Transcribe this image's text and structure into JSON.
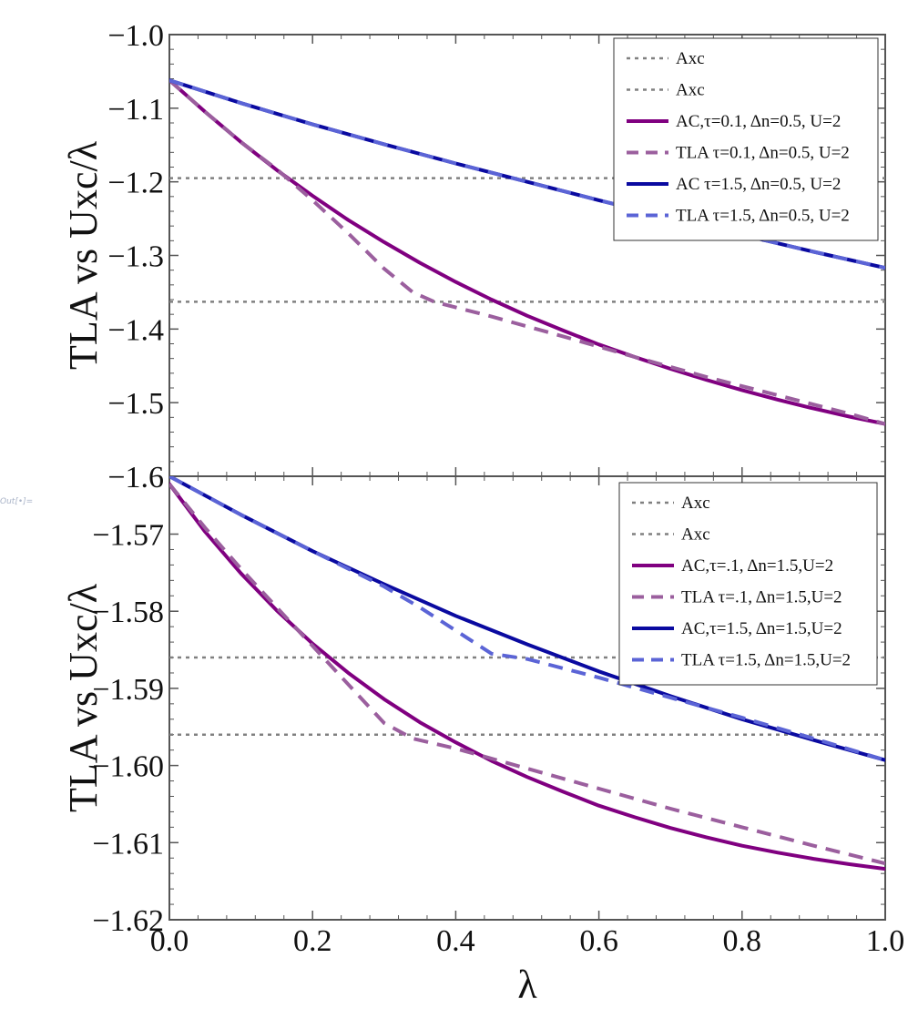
{
  "output_label": "Out[•]=",
  "chart_data": [
    {
      "type": "line",
      "ylabel": "TLA vs Uxc/λ",
      "xlabel": "",
      "xlim": [
        0,
        1
      ],
      "ylim": [
        -1.6,
        -1.0
      ],
      "x_ticks": [
        "0.0",
        "0.2",
        "0.4",
        "0.6",
        "0.8",
        "1.0"
      ],
      "y_ticks": [
        {
          "value": -1.0,
          "label": "−1.0"
        },
        {
          "value": -1.1,
          "label": "−1.1"
        },
        {
          "value": -1.2,
          "label": "−1.2"
        },
        {
          "value": -1.3,
          "label": "−1.3"
        },
        {
          "value": -1.4,
          "label": "−1.4"
        },
        {
          "value": -1.5,
          "label": "−1.5"
        },
        {
          "value": -1.6,
          "label": "−1.6"
        }
      ],
      "legend_position": "top-right",
      "series": [
        {
          "name": "Axc",
          "style": "dotted",
          "color": "#808080",
          "x": [
            0,
            1
          ],
          "y": [
            -1.195,
            -1.195
          ]
        },
        {
          "name": "Axc",
          "style": "dotted",
          "color": "#808080",
          "x": [
            0,
            1
          ],
          "y": [
            -1.363,
            -1.363
          ]
        },
        {
          "name": "AC,τ=0.1, Δn=0.5, U=2",
          "style": "solid",
          "color": "#800080",
          "x": [
            0,
            0.05,
            0.1,
            0.15,
            0.2,
            0.25,
            0.3,
            0.35,
            0.4,
            0.45,
            0.5,
            0.55,
            0.6,
            0.65,
            0.7,
            0.75,
            0.8,
            0.85,
            0.9,
            0.95,
            1.0
          ],
          "y": [
            -1.062,
            -1.105,
            -1.146,
            -1.184,
            -1.219,
            -1.252,
            -1.282,
            -1.31,
            -1.336,
            -1.36,
            -1.382,
            -1.402,
            -1.421,
            -1.438,
            -1.454,
            -1.469,
            -1.483,
            -1.496,
            -1.508,
            -1.519,
            -1.529
          ]
        },
        {
          "name": "TLA τ=0.1, Δn=0.5, U=2",
          "style": "dashed",
          "color": "#9b5f9e",
          "x": [
            0,
            0.05,
            0.1,
            0.15,
            0.2,
            0.25,
            0.3,
            0.34,
            0.37,
            0.45,
            0.55,
            0.65,
            0.75,
            0.85,
            0.95,
            1.0
          ],
          "y": [
            -1.062,
            -1.105,
            -1.146,
            -1.183,
            -1.225,
            -1.27,
            -1.318,
            -1.35,
            -1.363,
            -1.383,
            -1.41,
            -1.438,
            -1.465,
            -1.49,
            -1.515,
            -1.529
          ]
        },
        {
          "name": "AC τ=1.5, Δn=0.5, U=2",
          "style": "solid",
          "color": "#0a0aa0",
          "x": [
            0,
            0.1,
            0.2,
            0.3,
            0.4,
            0.5,
            0.6,
            0.7,
            0.8,
            0.9,
            1.0
          ],
          "y": [
            -1.062,
            -1.093,
            -1.122,
            -1.149,
            -1.175,
            -1.2,
            -1.225,
            -1.249,
            -1.272,
            -1.295,
            -1.317
          ]
        },
        {
          "name": "TLA τ=1.5, Δn=0.5, U=2",
          "style": "dashed",
          "color": "#5b64d6",
          "x": [
            0,
            0.1,
            0.2,
            0.3,
            0.4,
            0.5,
            0.6,
            0.7,
            0.8,
            0.9,
            1.0
          ],
          "y": [
            -1.062,
            -1.093,
            -1.122,
            -1.149,
            -1.175,
            -1.2,
            -1.225,
            -1.249,
            -1.272,
            -1.295,
            -1.317
          ]
        }
      ]
    },
    {
      "type": "line",
      "ylabel": "TLA vs Uxc/λ",
      "xlabel": "λ",
      "xlim": [
        0,
        1
      ],
      "ylim": [
        -1.62,
        -1.5625
      ],
      "x_ticks": [
        "0.0",
        "0.2",
        "0.4",
        "0.6",
        "0.8",
        "1.0"
      ],
      "y_ticks": [
        {
          "value": -1.57,
          "label": "−1.57"
        },
        {
          "value": -1.58,
          "label": "−1.58"
        },
        {
          "value": -1.59,
          "label": "−1.59"
        },
        {
          "value": -1.6,
          "label": "−1.60"
        },
        {
          "value": -1.61,
          "label": "−1.61"
        },
        {
          "value": -1.62,
          "label": "−1.62"
        }
      ],
      "legend_position": "top-right",
      "series": [
        {
          "name": "Axc",
          "style": "dotted",
          "color": "#808080",
          "x": [
            0,
            1
          ],
          "y": [
            -1.586,
            -1.586
          ]
        },
        {
          "name": "Axc",
          "style": "dotted",
          "color": "#808080",
          "x": [
            0,
            1
          ],
          "y": [
            -1.596,
            -1.596
          ]
        },
        {
          "name": "AC,τ=.1, Δn=1.5,U=2",
          "style": "solid",
          "color": "#800080",
          "x": [
            0,
            0.05,
            0.1,
            0.15,
            0.2,
            0.25,
            0.3,
            0.35,
            0.4,
            0.45,
            0.5,
            0.55,
            0.6,
            0.65,
            0.7,
            0.75,
            0.8,
            0.85,
            0.9,
            0.95,
            1.0
          ],
          "y": [
            -1.5635,
            -1.5697,
            -1.5751,
            -1.5799,
            -1.5842,
            -1.588,
            -1.5914,
            -1.5944,
            -1.597,
            -1.5994,
            -1.6015,
            -1.6034,
            -1.6052,
            -1.6067,
            -1.6081,
            -1.6093,
            -1.6104,
            -1.6113,
            -1.6121,
            -1.6128,
            -1.6134
          ]
        },
        {
          "name": "TLA τ=.1, Δn=1.5,U=2",
          "style": "dashed",
          "color": "#9b5f9e",
          "x": [
            0,
            0.05,
            0.1,
            0.15,
            0.2,
            0.25,
            0.3,
            0.34,
            0.4,
            0.5,
            0.6,
            0.7,
            0.8,
            0.9,
            1.0
          ],
          "y": [
            -1.5635,
            -1.5692,
            -1.5745,
            -1.5795,
            -1.5845,
            -1.5895,
            -1.5945,
            -1.5965,
            -1.5978,
            -1.6004,
            -1.603,
            -1.6056,
            -1.608,
            -1.6104,
            -1.6127
          ]
        },
        {
          "name": "AC,τ=1.5, Δn=1.5,U=2",
          "style": "solid",
          "color": "#0a0aa0",
          "x": [
            0,
            0.1,
            0.2,
            0.3,
            0.4,
            0.5,
            0.6,
            0.7,
            0.8,
            0.9,
            1.0
          ],
          "y": [
            -1.5625,
            -1.5675,
            -1.5722,
            -1.5765,
            -1.5806,
            -1.5843,
            -1.5878,
            -1.591,
            -1.594,
            -1.5967,
            -1.5993
          ]
        },
        {
          "name": "TLA τ=1.5, Δn=1.5,U=2",
          "style": "dashed",
          "color": "#5b64d6",
          "x": [
            0,
            0.1,
            0.2,
            0.3,
            0.35,
            0.4,
            0.45,
            0.5,
            0.6,
            0.7,
            0.8,
            0.9,
            1.0
          ],
          "y": [
            -1.5625,
            -1.5675,
            -1.5722,
            -1.5768,
            -1.5795,
            -1.5825,
            -1.5855,
            -1.5862,
            -1.5886,
            -1.5912,
            -1.5938,
            -1.5965,
            -1.5993
          ]
        }
      ]
    }
  ]
}
